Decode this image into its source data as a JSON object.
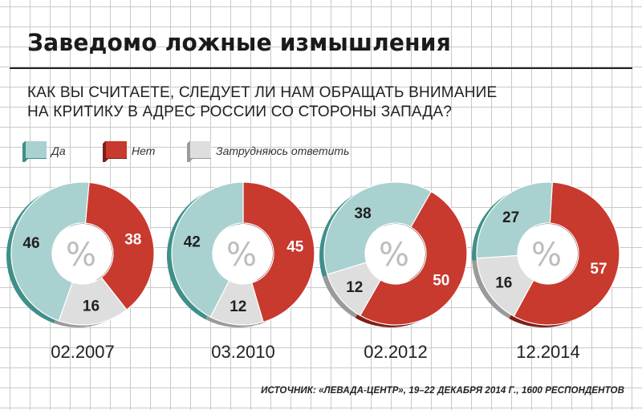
{
  "title": "Заведомо ложные измышления",
  "question": {
    "line1": "КАК ВЫ СЧИТАЕТЕ, СЛЕДУЕТ ЛИ НАМ ОБРАЩАТЬ ВНИМАНИЕ",
    "line2": "НА КРИТИКУ В АДРЕС РОССИИ СО СТОРОНЫ ЗАПАДА?"
  },
  "legend": [
    {
      "label": "Да",
      "color": "#a9d1cf",
      "shade": "#3f8f8a"
    },
    {
      "label": "Нет",
      "color": "#c8392e",
      "shade": "#7d1f18"
    },
    {
      "label": "Затрудняюсь ответить",
      "color": "#dedede",
      "shade": "#9a9a9a"
    }
  ],
  "chart_data": {
    "type": "pie",
    "variant": "donut",
    "center_label": "%",
    "categories": [
      "Да",
      "Нет",
      "Затрудняюсь ответить"
    ],
    "x": [
      "02.2007",
      "03.2010",
      "02.2012",
      "12.2014"
    ],
    "series": [
      {
        "name": "Да",
        "values": [
          46,
          42,
          38,
          27
        ]
      },
      {
        "name": "Нет",
        "values": [
          38,
          45,
          50,
          57
        ]
      },
      {
        "name": "Затрудняюсь ответить",
        "values": [
          16,
          12,
          12,
          16
        ]
      }
    ]
  },
  "source": "ИСТОЧНИК: «ЛЕВАДА-ЦЕНТР», 19–22 ДЕКАБРЯ 2014 Г., 1600 РЕСПОНДЕНТОВ"
}
